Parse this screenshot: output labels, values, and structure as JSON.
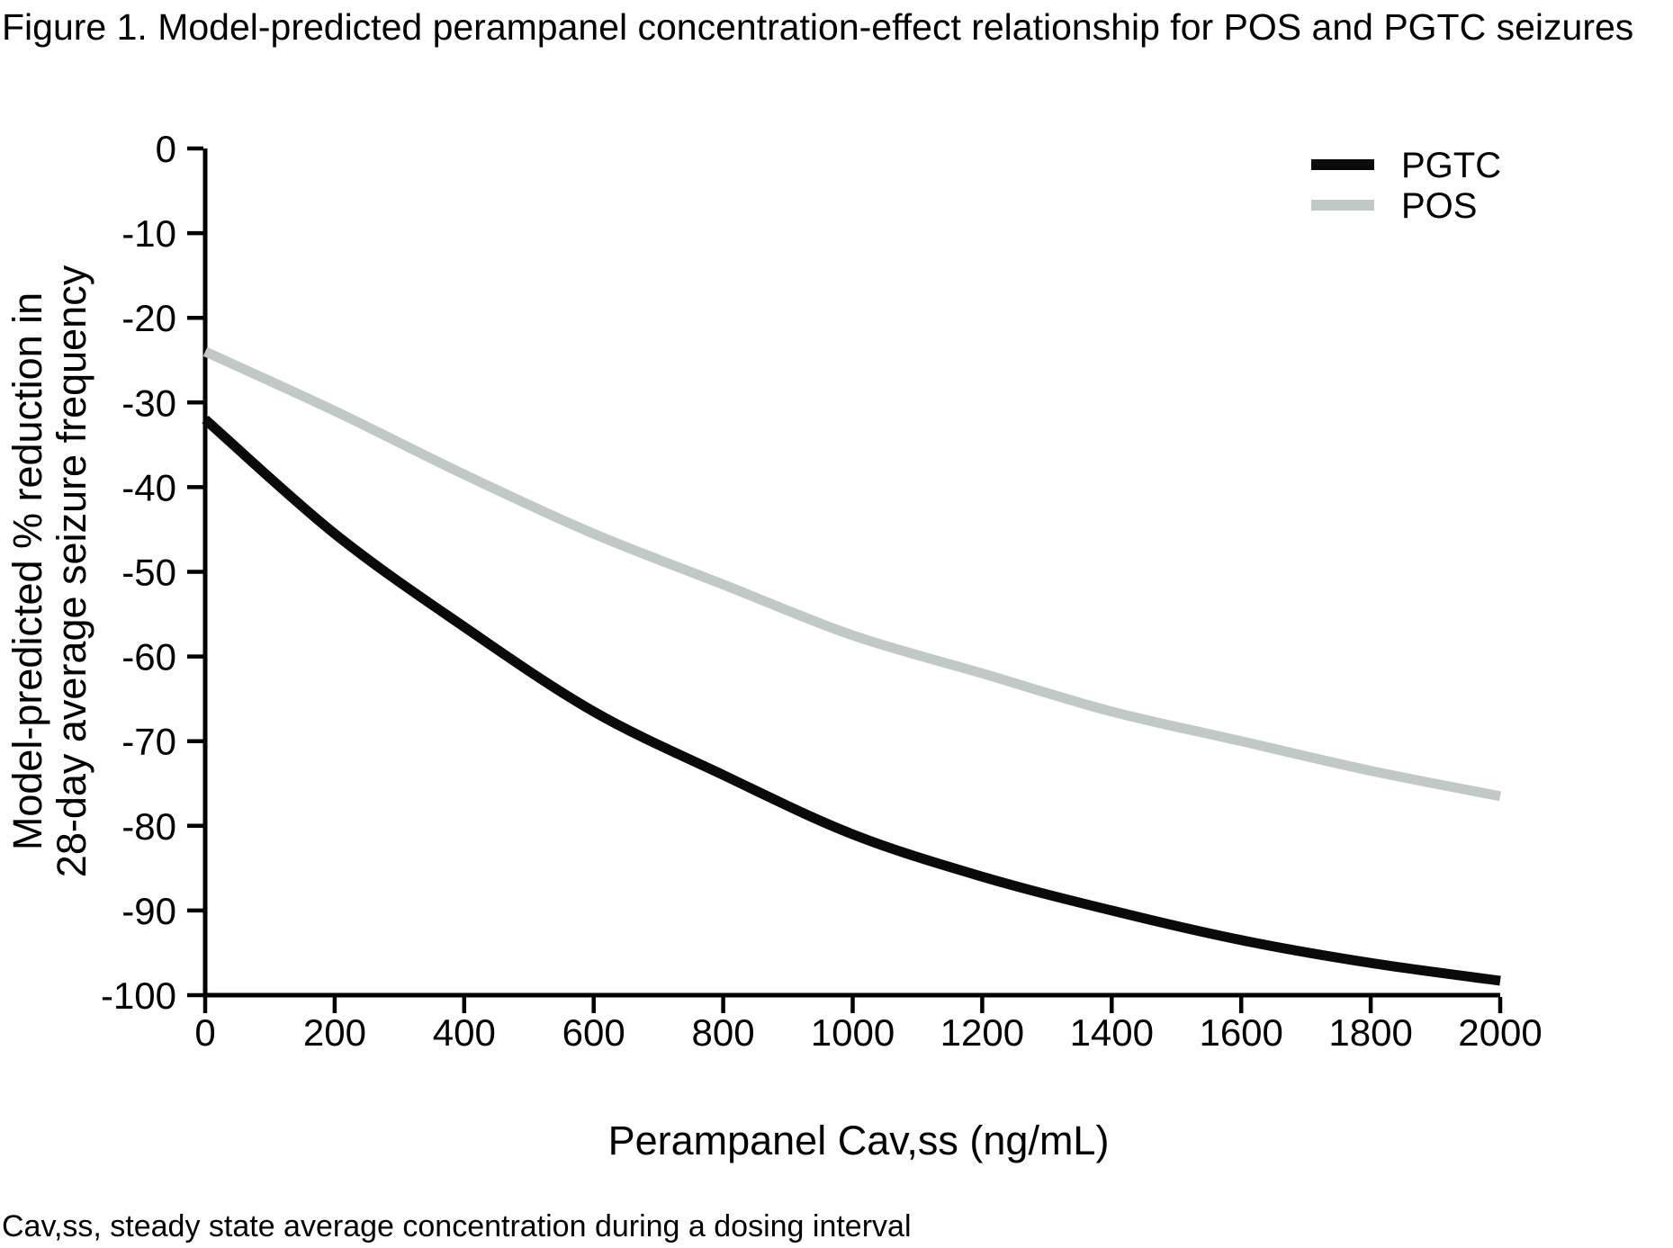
{
  "figure": {
    "title": "Figure 1. Model-predicted perampanel concentration-effect relationship for POS and PGTC seizures",
    "footnote": "Cav,ss, steady state average concentration during a dosing interval"
  },
  "chart_data": {
    "type": "line",
    "title": "Figure 1. Model-predicted perampanel concentration-effect relationship for POS and PGTC seizures",
    "xlabel": "Perampanel Cav,ss (ng/mL)",
    "ylabel_lines": [
      "Model-predicted % reduction in",
      "28-day average seizure frequency"
    ],
    "xlim": [
      0,
      2000
    ],
    "ylim": [
      -100,
      0
    ],
    "xticks": [
      0,
      200,
      400,
      600,
      800,
      1000,
      1200,
      1400,
      1600,
      1800,
      2000
    ],
    "yticks": [
      0,
      -10,
      -20,
      -30,
      -40,
      -50,
      -60,
      -70,
      -80,
      -90,
      -100
    ],
    "grid": false,
    "legend_position": "top-right",
    "x": [
      0,
      200,
      400,
      600,
      800,
      1000,
      1200,
      1400,
      1600,
      1800,
      2000
    ],
    "series": [
      {
        "name": "PGTC",
        "color": "#0a0a0a",
        "values": [
          -32,
          -45.5,
          -56.5,
          -66.5,
          -74,
          -81,
          -86,
          -90,
          -93.5,
          -96.2,
          -98.3
        ]
      },
      {
        "name": "POS",
        "color": "#c1c9c5",
        "values": [
          -24,
          -31,
          -38.5,
          -45.5,
          -51.5,
          -57.5,
          -62,
          -66.5,
          -70,
          -73.5,
          -76.5
        ]
      }
    ],
    "axis_color": "#000000",
    "footnote": "Cav,ss, steady state average concentration during a dosing interval"
  }
}
